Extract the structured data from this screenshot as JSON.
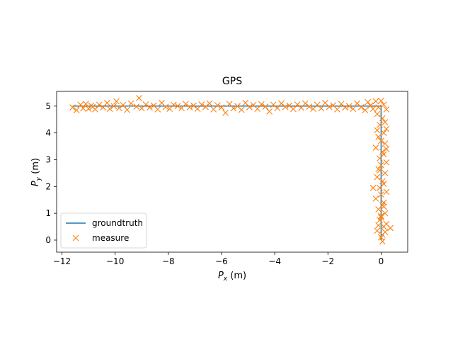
{
  "chart_data": {
    "type": "line",
    "title": "GPS",
    "xlabel": "P_x (m)",
    "ylabel": "P_y (m)",
    "xlim": [
      -12.2,
      1.0
    ],
    "ylim": [
      -0.45,
      5.55
    ],
    "xticks": [
      -12,
      -10,
      -8,
      -6,
      -4,
      -2,
      0
    ],
    "xtick_labels": [
      "−12",
      "−10",
      "−8",
      "−6",
      "−4",
      "−2",
      "0"
    ],
    "yticks": [
      0,
      1,
      2,
      3,
      4,
      5
    ],
    "ytick_labels": [
      "0",
      "1",
      "2",
      "3",
      "4",
      "5"
    ],
    "grid": false,
    "legend_position": "lower-left",
    "colors": {
      "groundtruth": "#1f77b4",
      "measure": "#ff7f0e"
    },
    "series": [
      {
        "name": "groundtruth",
        "kind": "line",
        "x": [
          -11.6,
          0.0,
          0.0
        ],
        "y": [
          5.0,
          5.0,
          0.0
        ]
      },
      {
        "name": "measure",
        "kind": "scatter",
        "marker": "x",
        "x": [
          -11.6,
          -11.45,
          -11.3,
          -11.2,
          -11.1,
          -11.0,
          -10.9,
          -10.85,
          -10.75,
          -10.6,
          -10.45,
          -10.3,
          -10.2,
          -10.05,
          -9.95,
          -9.85,
          -9.7,
          -9.55,
          -9.4,
          -9.2,
          -9.1,
          -9.0,
          -8.85,
          -8.7,
          -8.55,
          -8.4,
          -8.25,
          -8.1,
          -7.95,
          -7.8,
          -7.65,
          -7.5,
          -7.35,
          -7.2,
          -7.05,
          -6.9,
          -6.75,
          -6.6,
          -6.45,
          -6.3,
          -6.15,
          -6.0,
          -5.85,
          -5.7,
          -5.55,
          -5.4,
          -5.25,
          -5.1,
          -4.95,
          -4.8,
          -4.65,
          -4.5,
          -4.35,
          -4.2,
          -4.05,
          -3.9,
          -3.75,
          -3.6,
          -3.45,
          -3.3,
          -3.15,
          -3.0,
          -2.85,
          -2.7,
          -2.55,
          -2.4,
          -2.25,
          -2.1,
          -1.95,
          -1.8,
          -1.65,
          -1.5,
          -1.35,
          -1.2,
          -1.05,
          -0.9,
          -0.75,
          -0.6,
          -0.5,
          -0.4,
          -0.3,
          -0.2,
          -0.1,
          0.0,
          0.1,
          0.2,
          -0.15,
          0.05,
          0.15,
          -0.05,
          0.2,
          0.1,
          -0.1,
          0.0,
          0.15,
          -0.2,
          0.05,
          0.1,
          -0.05,
          0.2,
          0.0,
          -0.1,
          0.15,
          -0.15,
          0.05,
          0.1,
          -0.05,
          0.2,
          0.0,
          -0.2,
          0.1,
          0.05,
          -0.1,
          0.15,
          0.0,
          -0.05,
          0.2,
          0.1,
          -0.15,
          0.05,
          0.0,
          -0.3,
          0.05,
          0.15,
          -0.1,
          0.0,
          0.1,
          0.35,
          -0.05,
          0.2,
          -0.15
        ],
        "y": [
          4.95,
          4.85,
          5.05,
          4.92,
          5.08,
          4.9,
          5.02,
          4.97,
          4.88,
          5.05,
          4.95,
          5.12,
          4.9,
          5.0,
          5.18,
          4.93,
          5.04,
          4.86,
          5.1,
          4.98,
          5.3,
          4.92,
          5.06,
          4.95,
          5.02,
          4.88,
          5.12,
          4.97,
          4.9,
          5.05,
          5.0,
          4.93,
          5.08,
          4.96,
          5.02,
          4.9,
          5.06,
          4.97,
          5.1,
          4.88,
          5.03,
          4.95,
          4.75,
          5.08,
          4.92,
          5.0,
          4.86,
          5.12,
          4.96,
          5.04,
          4.9,
          5.07,
          4.98,
          4.8,
          5.05,
          4.93,
          5.1,
          4.97,
          5.02,
          4.89,
          5.06,
          4.94,
          5.1,
          4.98,
          4.9,
          5.05,
          4.92,
          5.12,
          4.97,
          5.03,
          4.88,
          5.08,
          4.95,
          5.0,
          4.9,
          5.1,
          4.96,
          4.85,
          5.15,
          5.02,
          4.9,
          5.18,
          4.95,
          5.2,
          5.05,
          4.88,
          4.7,
          4.55,
          4.4,
          4.3,
          4.15,
          4.0,
          3.85,
          3.7,
          3.6,
          3.45,
          3.3,
          3.2,
          3.05,
          2.9,
          2.8,
          2.65,
          2.5,
          2.35,
          2.2,
          2.1,
          1.95,
          1.8,
          1.7,
          1.55,
          1.4,
          1.3,
          1.15,
          1.0,
          0.9,
          0.75,
          0.6,
          0.5,
          0.35,
          0.2,
          0.1,
          1.95,
          -0.05,
          0.3,
          0.55,
          0.85,
          1.25,
          0.45,
          2.6,
          3.4,
          4.1
        ]
      }
    ]
  }
}
